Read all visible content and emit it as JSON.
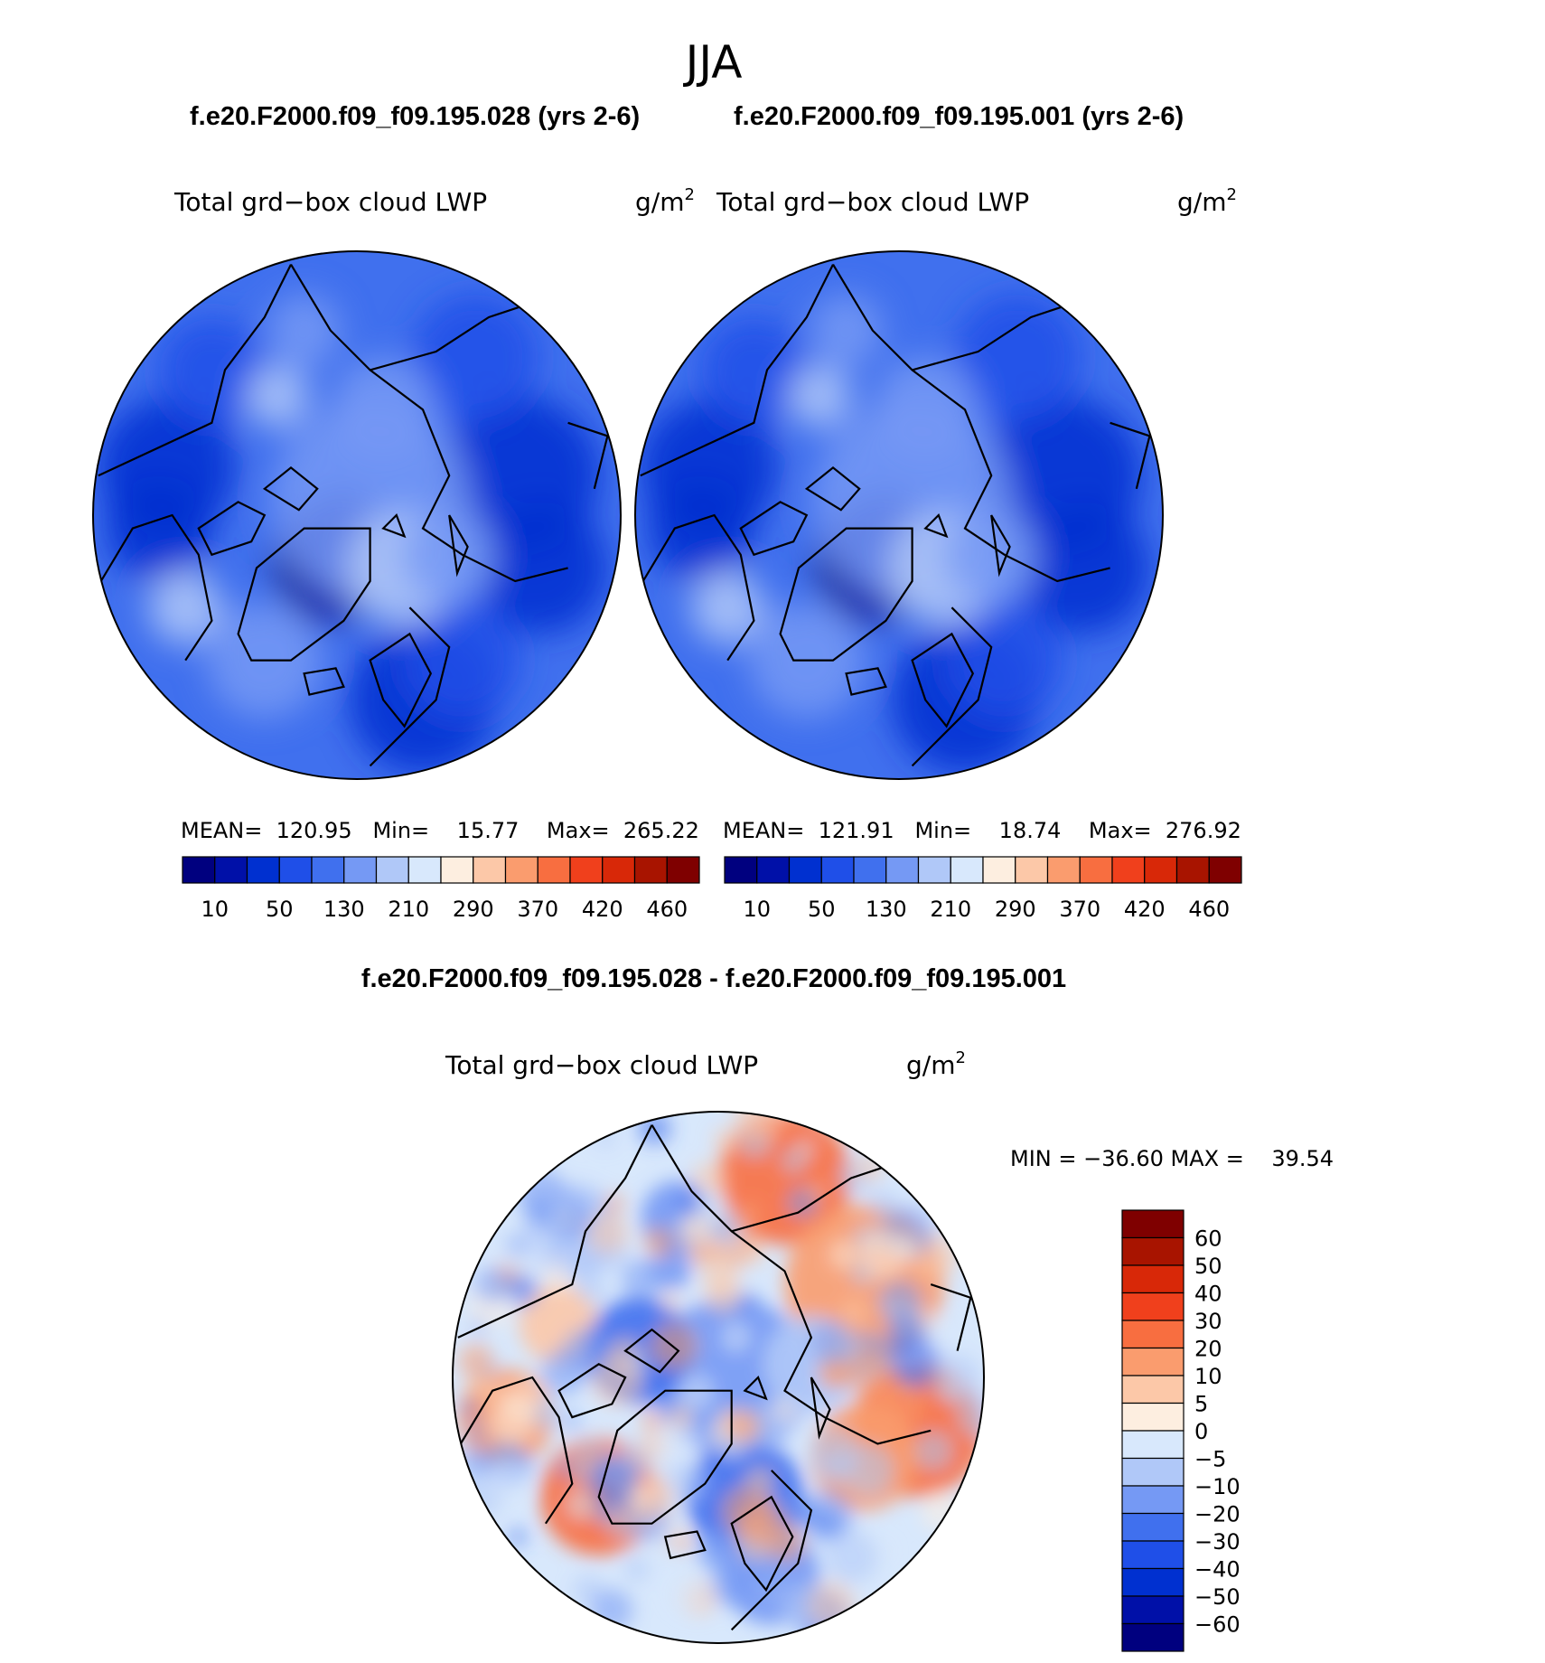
{
  "page": {
    "season": "JJA",
    "case1_title": "f.e20.F2000.f09_f09.195.028 (yrs 2-6)",
    "case2_title": "f.e20.F2000.f09_f09.195.001 (yrs 2-6)",
    "diff_title": "f.e20.F2000.f09_f09.195.028 - f.e20.F2000.f09_f09.195.001"
  },
  "colors": {
    "abs_scale": [
      "#00007f",
      "#0010a8",
      "#0030d0",
      "#1f4fe8",
      "#4070ee",
      "#7599f4",
      "#b0c8f8",
      "#d8e8fc",
      "#fdeee0",
      "#fcc8a8",
      "#fa9c6e",
      "#f86e40",
      "#f0401c",
      "#d82808",
      "#a81400",
      "#7f0000"
    ],
    "diff_scale": [
      "#00007f",
      "#0010a8",
      "#0030d0",
      "#1f4fe8",
      "#4070ee",
      "#7599f4",
      "#b0c8f8",
      "#d8e8fc",
      "#fdeee0",
      "#fcc8a8",
      "#fa9c6e",
      "#f86e40",
      "#f0401c",
      "#d82808",
      "#a81400",
      "#7f0000"
    ],
    "continent_line": "#000000"
  },
  "chart_data": [
    {
      "type": "heatmap",
      "projection": "north polar stereographic",
      "title": "Total grd−box cloud LWP",
      "units": "g/m",
      "units_power": "2",
      "stats_text": "MEAN=  120.95   Min=    15.77    Max=  265.22",
      "stats": {
        "mean": 120.95,
        "min": 15.77,
        "max": 265.22
      },
      "colorbar_tick_labels": [
        "10",
        "50",
        "130",
        "210",
        "290",
        "370",
        "420",
        "460"
      ],
      "dominant_pattern": "mostly 50–210 g/m2 over Arctic; lowest (10–50) over Greenland and N. Pacific/Atlantic storm tracks"
    },
    {
      "type": "heatmap",
      "projection": "north polar stereographic",
      "title": "Total grd−box cloud LWP",
      "units": "g/m",
      "units_power": "2",
      "stats_text": "MEAN=  121.91   Min=    18.74    Max=  276.92",
      "stats": {
        "mean": 121.91,
        "min": 18.74,
        "max": 276.92
      },
      "colorbar_tick_labels": [
        "10",
        "50",
        "130",
        "210",
        "290",
        "370",
        "420",
        "460"
      ]
    },
    {
      "type": "heatmap",
      "projection": "north polar stereographic",
      "title": "Total grd−box cloud LWP",
      "units": "g/m",
      "units_power": "2",
      "minmax_text": "MIN = −36.60 MAX =    39.54",
      "stats": {
        "min": -36.6,
        "max": 39.54
      },
      "colorbar_tick_labels": [
        "60",
        "50",
        "40",
        "30",
        "20",
        "10",
        "5",
        "0",
        "−5",
        "−10",
        "−20",
        "−30",
        "−40",
        "−50",
        "−60"
      ],
      "colorbar_levels": [
        60,
        50,
        40,
        30,
        20,
        10,
        5,
        0,
        -5,
        -10,
        -20,
        -30,
        -40,
        -50,
        -60
      ]
    }
  ]
}
